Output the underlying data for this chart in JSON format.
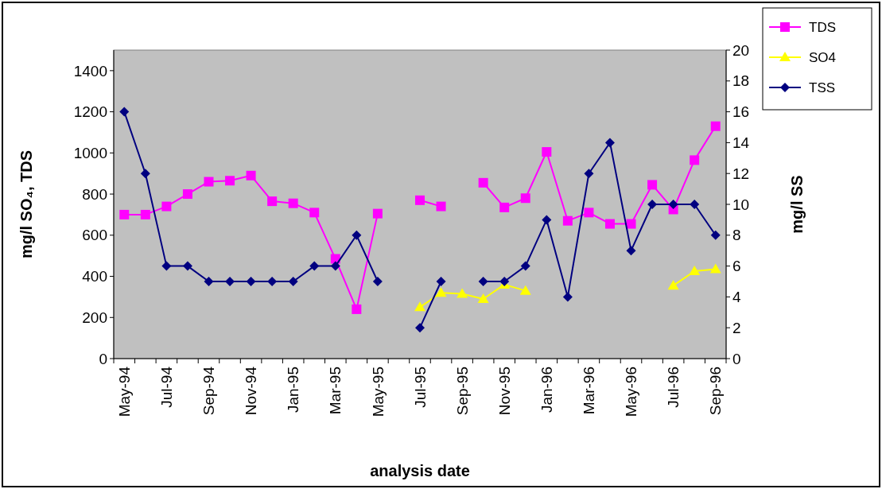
{
  "chart_data": {
    "type": "line",
    "xlabel": "analysis date",
    "ylabel": "mg/l SO₄, TDS",
    "y2label": "mg/l SS",
    "categories": [
      "May-94",
      null,
      "Jul-94",
      null,
      "Sep-94",
      null,
      "Nov-94",
      null,
      "Jan-95",
      null,
      "Mar-95",
      null,
      "May-95",
      null,
      "Jul-95",
      null,
      "Sep-95",
      null,
      "Nov-95",
      null,
      "Jan-96",
      null,
      "Mar-96",
      null,
      "May-96",
      null,
      "Jul-96",
      null,
      "Sep-96"
    ],
    "series": [
      {
        "name": "TDS",
        "color": "#ff00ff",
        "marker": "square",
        "values": [
          700,
          700,
          740,
          800,
          860,
          865,
          890,
          765,
          755,
          710,
          485,
          240,
          705,
          null,
          770,
          740,
          null,
          855,
          735,
          780,
          1005,
          670,
          710,
          655,
          655,
          845,
          725,
          965,
          1130
        ]
      },
      {
        "name": "SO4",
        "color": "#ffff00",
        "marker": "triangle",
        "values": [
          null,
          null,
          null,
          null,
          null,
          null,
          null,
          null,
          null,
          null,
          null,
          null,
          null,
          null,
          250,
          320,
          315,
          290,
          360,
          330,
          null,
          null,
          null,
          null,
          null,
          null,
          355,
          425,
          435
        ]
      },
      {
        "name": "TSS",
        "color": "#000080",
        "marker": "diamond",
        "axis": "y2",
        "values": [
          16,
          12,
          6,
          6,
          5,
          5,
          5,
          5,
          5,
          6,
          6,
          8,
          5,
          null,
          2,
          5,
          null,
          5,
          5,
          6,
          9,
          4,
          12,
          14,
          7,
          10,
          10,
          10,
          8
        ]
      }
    ],
    "ylim": [
      0,
      1500
    ],
    "yticks": [
      0,
      200,
      400,
      600,
      800,
      1000,
      1200,
      1400
    ],
    "y2lim": [
      0,
      20
    ],
    "y2ticks": [
      0,
      2,
      4,
      6,
      8,
      10,
      12,
      14,
      16,
      18,
      20
    ],
    "grid": false,
    "legend": "top right"
  }
}
